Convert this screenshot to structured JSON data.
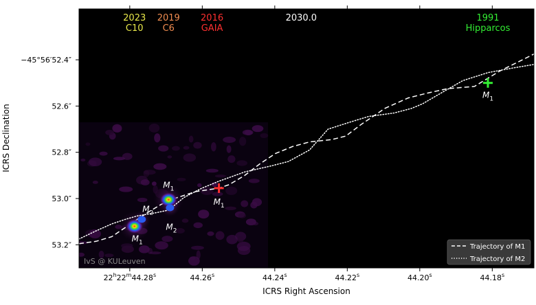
{
  "chart_data": {
    "type": "line",
    "title": "",
    "xlabel": "ICRS Right Ascension",
    "ylabel": "ICRS Declination",
    "x_ticks": [
      {
        "value": 44.28,
        "label": "22^h22^m44.28^s"
      },
      {
        "value": 44.26,
        "label": "44.26^s"
      },
      {
        "value": 44.24,
        "label": "44.24^s"
      },
      {
        "value": 44.22,
        "label": "44.22^s"
      },
      {
        "value": 44.2,
        "label": "44.20^s"
      },
      {
        "value": 44.18,
        "label": "44.18^s"
      }
    ],
    "y_ticks": [
      {
        "value": 52.4,
        "label": "−45°56′52.4″"
      },
      {
        "value": 52.6,
        "label": "52.6″"
      },
      {
        "value": 52.8,
        "label": "52.8″"
      },
      {
        "value": 53.0,
        "label": "53.0″"
      },
      {
        "value": 53.2,
        "label": "53.2″"
      }
    ],
    "xlim": [
      44.294,
      44.1685
    ],
    "ylim": [
      52.18,
      53.3
    ],
    "grid": false,
    "legend_position": "bottom-right",
    "epoch_labels": [
      {
        "year": "2023",
        "instrument": "C10",
        "color": "#e8e84a",
        "ra": 44.2787
      },
      {
        "year": "2019",
        "instrument": "C6",
        "color": "#f08c50",
        "ra": 44.2693
      },
      {
        "year": "2016",
        "instrument": "GAIA",
        "color": "#ff3030",
        "ra": 44.2573
      },
      {
        "year": "2030.0",
        "instrument": "",
        "color": "#ffffff",
        "ra": 44.2327
      },
      {
        "year": "1991",
        "instrument": "Hipparcos",
        "color": "#33ee33",
        "ra": 44.1812
      }
    ],
    "series": [
      {
        "name": "Trajectory of M1",
        "style": "dashed",
        "color": "#ffffff",
        "x": [
          44.294,
          44.2893,
          44.285,
          44.2812,
          44.2779,
          44.2745,
          44.2713,
          44.2677,
          44.2618,
          44.2554,
          44.2526,
          44.2483,
          44.2441,
          44.2398,
          44.2351,
          44.2303,
          44.2243,
          44.2204,
          44.2162,
          44.2096,
          44.2032,
          44.1982,
          44.1924,
          44.1849,
          44.1781,
          44.1704,
          44.1685
        ],
        "y": [
          53.195,
          53.185,
          53.165,
          53.125,
          53.09,
          53.055,
          53.025,
          53.0,
          52.97,
          52.955,
          52.94,
          52.9,
          52.85,
          52.805,
          52.775,
          52.755,
          52.745,
          52.73,
          52.68,
          52.61,
          52.565,
          52.545,
          52.525,
          52.515,
          52.45,
          52.39,
          52.375
        ]
      },
      {
        "name": "Trajectory of M2",
        "style": "dotted",
        "color": "#ffffff",
        "x": [
          44.294,
          44.2893,
          44.285,
          44.2812,
          44.2779,
          44.2723,
          44.2693,
          44.265,
          44.2601,
          44.2554,
          44.2483,
          44.2413,
          44.2363,
          44.2304,
          44.2253,
          44.2193,
          44.2141,
          44.2071,
          44.2022,
          44.1992,
          44.1948,
          44.1881,
          44.1811,
          44.1741,
          44.1685
        ],
        "y": [
          53.175,
          53.14,
          53.11,
          53.09,
          53.075,
          53.06,
          53.05,
          52.995,
          52.955,
          52.925,
          52.885,
          52.86,
          52.84,
          52.79,
          52.7,
          52.67,
          52.645,
          52.63,
          52.61,
          52.59,
          52.55,
          52.49,
          52.455,
          52.435,
          52.42
        ]
      }
    ],
    "markers": [
      {
        "label": "M1",
        "epoch": "2023",
        "ra": 44.2787,
        "dec": 53.12,
        "type": "blob"
      },
      {
        "label": "M2",
        "epoch": "2023",
        "ra": 44.2767,
        "dec": 53.09,
        "type": "blob"
      },
      {
        "label": "M1",
        "epoch": "2019",
        "ra": 44.2693,
        "dec": 53.005,
        "type": "blob"
      },
      {
        "label": "M2",
        "epoch": "2019",
        "ra": 44.2689,
        "dec": 53.04,
        "type": "blob"
      },
      {
        "label": "M1",
        "epoch": "2016",
        "ra": 44.2554,
        "dec": 52.955,
        "type": "cross"
      },
      {
        "label": "M1",
        "epoch": "1991",
        "ra": 44.1812,
        "dec": 52.5,
        "type": "cross"
      }
    ],
    "image_credit": "IvS @ KULeuven"
  }
}
